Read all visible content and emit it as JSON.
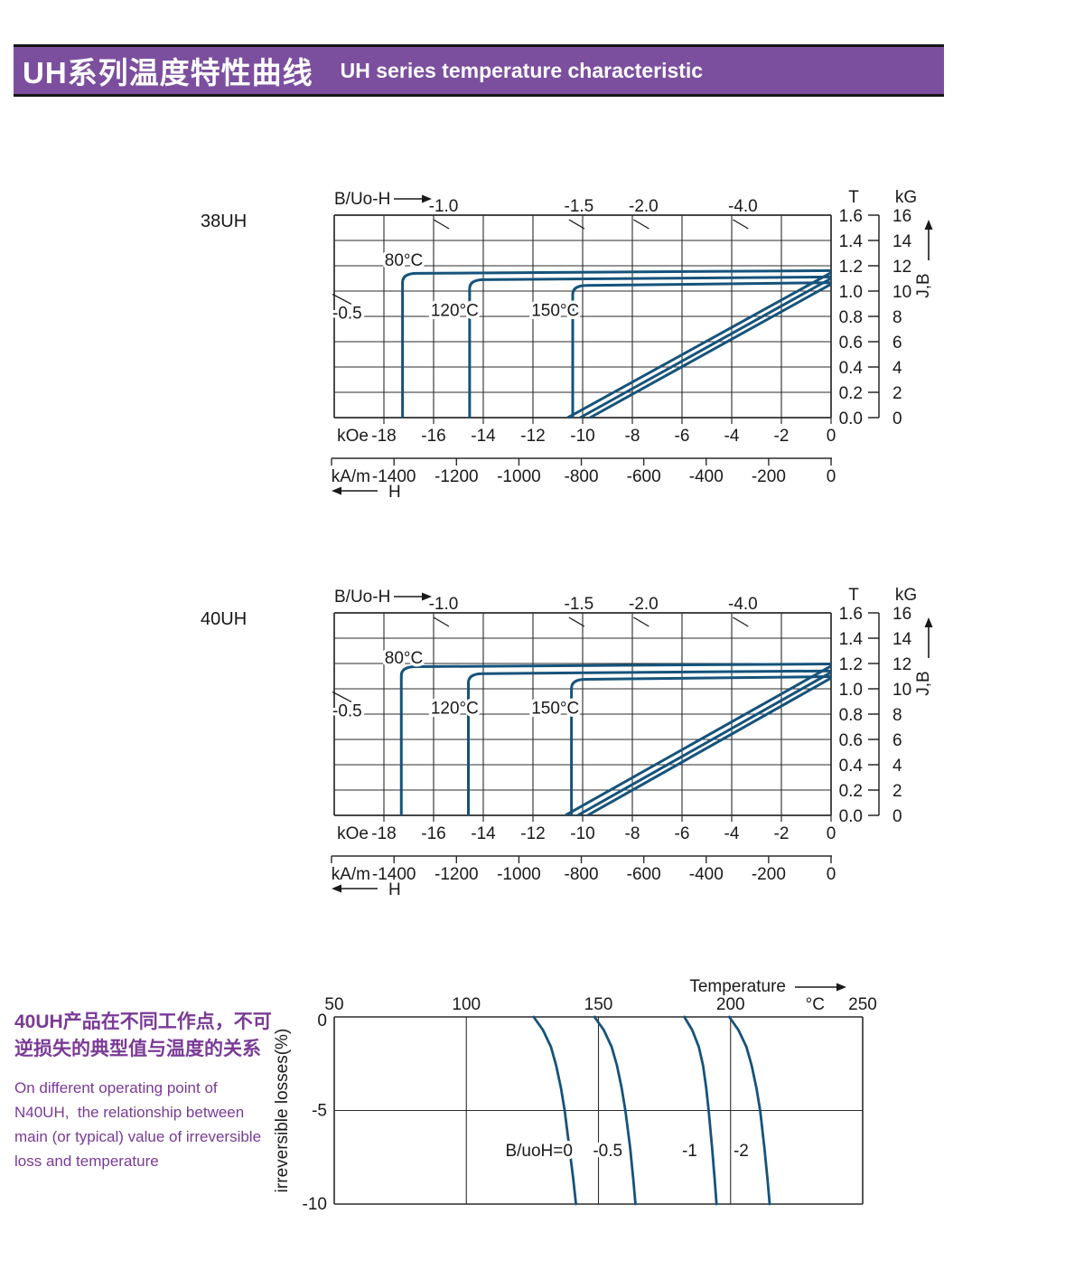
{
  "header": {
    "title_zh": "UH系列温度特性曲线",
    "title_en": "UH series temperature characteristic",
    "band_color": "#7b4f9e",
    "text_color": "#ffffff"
  },
  "note": {
    "zh_lines": [
      "40UH产品在不同工作点，不可",
      "逆损失的典型值与温度的关系"
    ],
    "en_lines": [
      "On different operating point of",
      "N40UH,  the relationship between",
      "main (or typical) value of irreversible",
      "loss and temperature"
    ],
    "color": "#7a3a96"
  },
  "colors": {
    "curve": "#15537b",
    "grid": "#2b2b2b",
    "text": "#1a1a1a"
  },
  "chart_data": [
    {
      "type": "line",
      "id": "38UH",
      "title": "38UH",
      "top_axis_label": "B/Uo-H",
      "y_axis": {
        "col1_header": "T",
        "col2_header": "kG",
        "ticks_T": [
          "1.6",
          "1.4",
          "1.2",
          "1.0",
          "0.8",
          "0.6",
          "0.4",
          "0.2",
          "0.0"
        ],
        "ticks_kG": [
          "16",
          "14",
          "12",
          "10",
          "8",
          "6",
          "4",
          "2",
          "0"
        ],
        "arrow_label": "J,B",
        "range_T": [
          0,
          1.6
        ]
      },
      "x_axis": {
        "unit1": "kOe",
        "ticks_kOe": [
          -18,
          -16,
          -14,
          -12,
          -10,
          -8,
          -6,
          -4,
          -2,
          0
        ],
        "unit2": "kA/m",
        "ticks_kAm": [
          -1400,
          -1200,
          -1000,
          -800,
          -600,
          -400,
          -200,
          0
        ],
        "arrow_label": "H",
        "range_kOe": [
          -20,
          0
        ],
        "kOe_per_kAm": 0.0125664
      },
      "load_lines": [
        {
          "label": "-1.0",
          "h_kOe": -15.6
        },
        {
          "label": "-1.5",
          "h_kOe": -10.15
        },
        {
          "label": "-2.0",
          "h_kOe": -7.55
        },
        {
          "label": "-4.0",
          "h_kOe": -3.55
        }
      ],
      "left_load_line": {
        "label": "-0.5",
        "t": 0.84
      },
      "curves": [
        {
          "name": "80°C",
          "label_at": [
            -17.2,
            1.25
          ],
          "knee_kOe": -17.25,
          "flat_T": 1.14,
          "b_hc_kOe": -10.6,
          "b_br_T": 1.145
        },
        {
          "name": "120°C",
          "label_at": [
            -15.15,
            0.855
          ],
          "knee_kOe": -14.55,
          "flat_T": 1.09,
          "b_hc_kOe": -10.1,
          "b_br_T": 1.1
        },
        {
          "name": "150°C",
          "label_at": [
            -11.1,
            0.855
          ],
          "knee_kOe": -10.4,
          "flat_T": 1.045,
          "b_hc_kOe": -9.7,
          "b_br_T": 1.055
        }
      ]
    },
    {
      "type": "line",
      "id": "40UH",
      "title": "40UH",
      "top_axis_label": "B/Uo-H",
      "y_axis": {
        "col1_header": "T",
        "col2_header": "kG",
        "ticks_T": [
          "1.6",
          "1.4",
          "1.2",
          "1.0",
          "0.8",
          "0.6",
          "0.4",
          "0.2",
          "0.0"
        ],
        "ticks_kG": [
          "16",
          "14",
          "12",
          "10",
          "8",
          "6",
          "4",
          "2",
          "0"
        ],
        "arrow_label": "J,B",
        "range_T": [
          0,
          1.6
        ]
      },
      "x_axis": {
        "unit1": "kOe",
        "ticks_kOe": [
          -18,
          -16,
          -14,
          -12,
          -10,
          -8,
          -6,
          -4,
          -2,
          0
        ],
        "unit2": "kA/m",
        "ticks_kAm": [
          -1400,
          -1200,
          -1000,
          -800,
          -600,
          -400,
          -200,
          0
        ],
        "arrow_label": "H",
        "range_kOe": [
          -20,
          0
        ],
        "kOe_per_kAm": 0.0125664
      },
      "load_lines": [
        {
          "label": "-1.0",
          "h_kOe": -15.6
        },
        {
          "label": "-1.5",
          "h_kOe": -10.15
        },
        {
          "label": "-2.0",
          "h_kOe": -7.55
        },
        {
          "label": "-4.0",
          "h_kOe": -3.55
        }
      ],
      "left_load_line": {
        "label": "-0.5",
        "t": 0.84
      },
      "curves": [
        {
          "name": "80°C",
          "label_at": [
            -17.2,
            1.25
          ],
          "knee_kOe": -17.3,
          "flat_T": 1.175,
          "b_hc_kOe": -10.7,
          "b_br_T": 1.18
        },
        {
          "name": "120°C",
          "label_at": [
            -15.15,
            0.855
          ],
          "knee_kOe": -14.6,
          "flat_T": 1.12,
          "b_hc_kOe": -10.2,
          "b_br_T": 1.13
        },
        {
          "name": "150°C",
          "label_at": [
            -11.1,
            0.855
          ],
          "knee_kOe": -10.45,
          "flat_T": 1.075,
          "b_hc_kOe": -9.8,
          "b_br_T": 1.085
        }
      ]
    },
    {
      "type": "line",
      "id": "irreversible-loss",
      "x_axis": {
        "label": "Temperature",
        "unit": "°C",
        "ticks": [
          50,
          100,
          150,
          200,
          250
        ],
        "range": [
          50,
          250
        ]
      },
      "y_axis": {
        "label": "irreversible  losses(%)",
        "ticks": [
          "0",
          "-5",
          "-10"
        ],
        "tick_values": [
          0,
          -5,
          -10
        ],
        "range": [
          -10,
          0
        ]
      },
      "series": [
        {
          "name": "B/uoH=0",
          "label_at": [
            127.5,
            -7.1
          ],
          "points": [
            [
              125.5,
              0
            ],
            [
              129,
              -0.7
            ],
            [
              132,
              -1.6
            ],
            [
              134,
              -2.6
            ],
            [
              135.8,
              -3.8
            ],
            [
              137.2,
              -5
            ],
            [
              139,
              -7
            ],
            [
              140.5,
              -8.7
            ],
            [
              141.5,
              -10
            ]
          ]
        },
        {
          "name": "-0.5",
          "label_at": [
            153.5,
            -7.1
          ],
          "points": [
            [
              148.5,
              0
            ],
            [
              152,
              -0.7
            ],
            [
              155,
              -1.6
            ],
            [
              157,
              -2.6
            ],
            [
              158.8,
              -3.8
            ],
            [
              160.2,
              -5
            ],
            [
              162,
              -7
            ],
            [
              163.2,
              -8.7
            ],
            [
              164,
              -10
            ]
          ]
        },
        {
          "name": "-1",
          "label_at": [
            184.5,
            -7.1
          ],
          "points": [
            [
              182.5,
              0
            ],
            [
              185.5,
              -0.7
            ],
            [
              188,
              -1.6
            ],
            [
              189.6,
              -2.6
            ],
            [
              190.8,
              -3.8
            ],
            [
              191.7,
              -5
            ],
            [
              193,
              -7
            ],
            [
              194,
              -8.7
            ],
            [
              194.7,
              -10
            ]
          ]
        },
        {
          "name": "-2",
          "label_at": [
            204,
            -7.1
          ],
          "points": [
            [
              199.5,
              0
            ],
            [
              203,
              -0.7
            ],
            [
              206,
              -1.6
            ],
            [
              208,
              -2.6
            ],
            [
              209.8,
              -3.8
            ],
            [
              211.2,
              -5
            ],
            [
              212.8,
              -7
            ],
            [
              214,
              -8.7
            ],
            [
              214.8,
              -10
            ]
          ]
        }
      ]
    }
  ]
}
